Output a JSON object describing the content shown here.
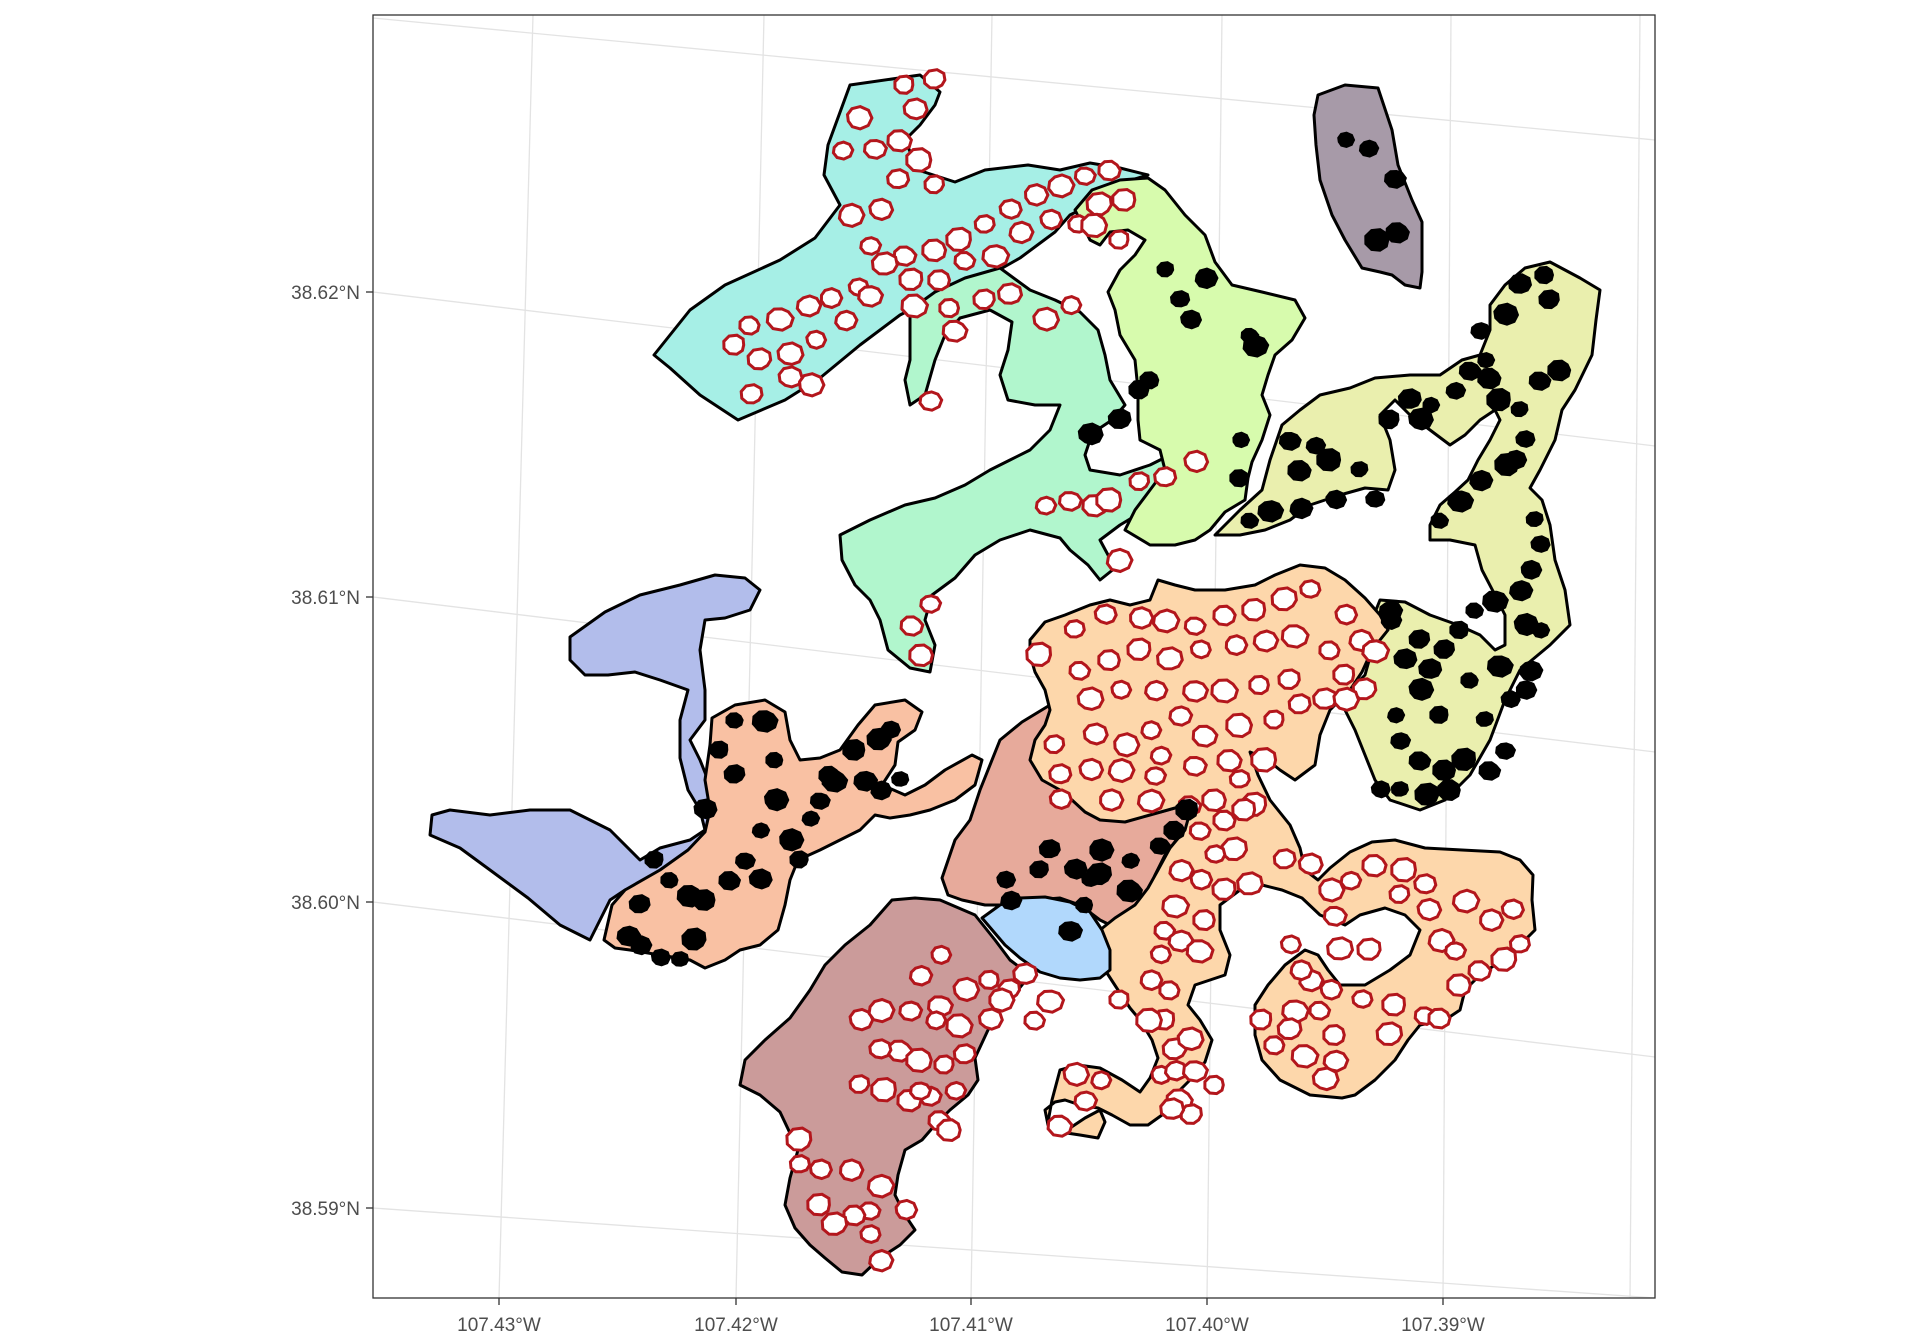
{
  "map": {
    "lon_labels": [
      "107.43°W",
      "107.42°W",
      "107.41°W",
      "107.40°W",
      "107.39°W"
    ],
    "lat_labels": [
      "38.62°N",
      "38.61°N",
      "38.60°N",
      "38.59°N"
    ]
  },
  "legend": null,
  "colors": {
    "panel_bg": "#ffffff",
    "grid": "#e3e3e3",
    "outline": "#000000",
    "hole_outline": "#b3161c",
    "fills": {
      "cyan": "#a6efe6",
      "mint": "#b1f6cd",
      "light_green": "#d7fbad",
      "yellow_green": "#eaefae",
      "purple_grey": "#a79aa8",
      "periwinkle": "#b2bdeb",
      "salmon": "#f9c1a3",
      "light_orange": "#fdd7ab",
      "dusty_rose": "#e7aa9b",
      "sky_blue": "#b1d8fc",
      "mauve": "#cb9b9a"
    }
  }
}
